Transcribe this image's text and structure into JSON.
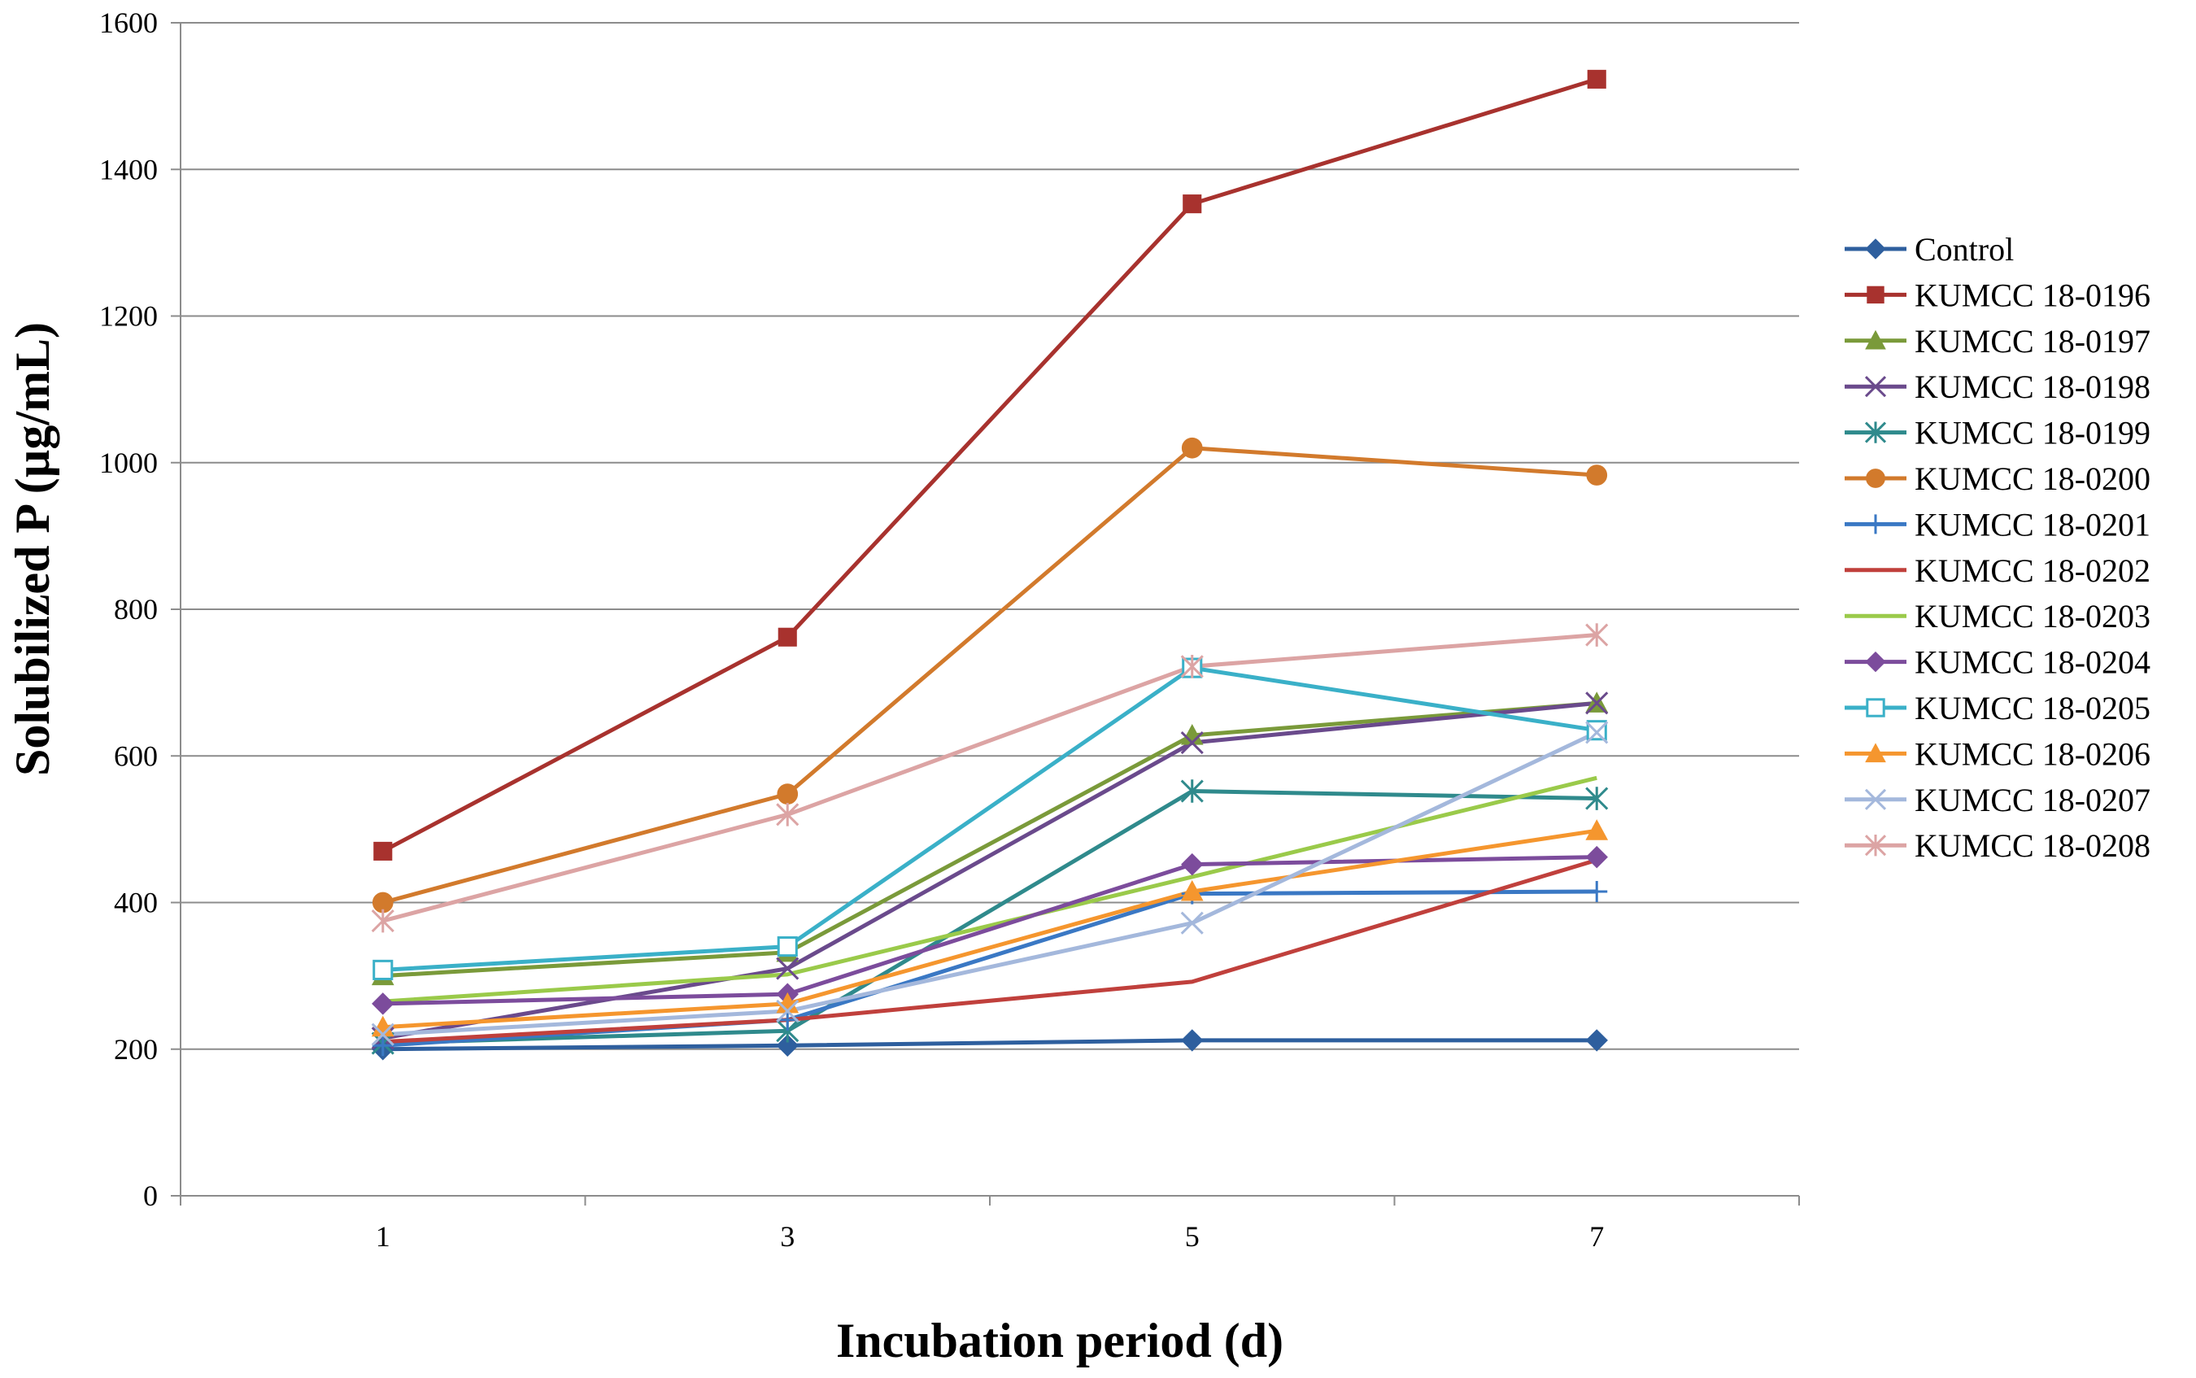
{
  "chart_data": {
    "type": "line",
    "title": "",
    "xlabel": "Incubation period (d)",
    "ylabel": "Solubilized P (µg/mL)",
    "x": [
      1,
      3,
      5,
      7
    ],
    "x_tick_labels": [
      "1",
      "3",
      "5",
      "7"
    ],
    "ylim": [
      0,
      1600
    ],
    "y_ticks": [
      0,
      200,
      400,
      600,
      800,
      1000,
      1200,
      1400,
      1600
    ],
    "grid": "horizontal",
    "legend_position": "right",
    "series": [
      {
        "name": "Control",
        "color": "#2e5f9e",
        "marker": "diamond",
        "values": [
          200,
          205,
          212,
          212
        ]
      },
      {
        "name": "KUMCC 18-0196",
        "color": "#a8322e",
        "marker": "square",
        "values": [
          470,
          762,
          1353,
          1523
        ]
      },
      {
        "name": "KUMCC 18-0197",
        "color": "#7a9a3a",
        "marker": "triangle",
        "values": [
          300,
          332,
          628,
          672
        ]
      },
      {
        "name": "KUMCC 18-0198",
        "color": "#6a4a8c",
        "marker": "x",
        "values": [
          215,
          310,
          618,
          672
        ]
      },
      {
        "name": "KUMCC 18-0199",
        "color": "#2f8a8c",
        "marker": "star",
        "values": [
          208,
          225,
          552,
          542
        ]
      },
      {
        "name": "KUMCC 18-0200",
        "color": "#d27a2c",
        "marker": "circle",
        "values": [
          400,
          548,
          1020,
          983
        ]
      },
      {
        "name": "KUMCC 18-0201",
        "color": "#3a78c4",
        "marker": "plus",
        "values": [
          205,
          240,
          412,
          415
        ]
      },
      {
        "name": "KUMCC 18-0202",
        "color": "#c0403c",
        "marker": "none",
        "values": [
          210,
          240,
          292,
          458
        ]
      },
      {
        "name": "KUMCC 18-0203",
        "color": "#9aca4a",
        "marker": "none",
        "values": [
          265,
          302,
          435,
          570
        ]
      },
      {
        "name": "KUMCC 18-0204",
        "color": "#7c4c9c",
        "marker": "diamond",
        "values": [
          262,
          275,
          452,
          462
        ]
      },
      {
        "name": "KUMCC 18-0205",
        "color": "#3ab0c8",
        "marker": "square-open",
        "values": [
          308,
          340,
          720,
          635
        ]
      },
      {
        "name": "KUMCC 18-0206",
        "color": "#f5962e",
        "marker": "triangle",
        "values": [
          230,
          262,
          415,
          498
        ]
      },
      {
        "name": "KUMCC 18-0207",
        "color": "#a4b8dc",
        "marker": "x",
        "values": [
          220,
          252,
          372,
          632
        ]
      },
      {
        "name": "KUMCC 18-0208",
        "color": "#dca4a4",
        "marker": "star",
        "values": [
          375,
          520,
          722,
          765
        ]
      }
    ]
  }
}
